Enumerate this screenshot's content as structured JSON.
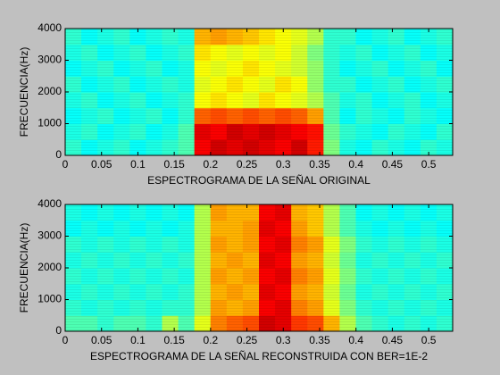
{
  "chart_data": [
    {
      "type": "heatmap",
      "xlabel": "ESPECTROGRAMA DE LA SEÑAL ORIGINAL",
      "ylabel": "FRECUENCIA(Hz)",
      "xlim": [
        0,
        0.533
      ],
      "ylim": [
        0,
        4000
      ],
      "xticks": [
        0,
        0.05,
        0.1,
        0.15,
        0.2,
        0.25,
        0.3,
        0.35,
        0.4,
        0.45,
        0.5
      ],
      "yticks": [
        0,
        1000,
        2000,
        3000,
        4000
      ],
      "colormap": "jet",
      "clim": [
        0,
        1
      ],
      "z": [
        [
          0.42,
          0.38,
          0.4,
          0.42,
          0.38,
          0.4,
          0.42,
          0.45,
          0.88,
          0.92,
          0.9,
          0.92,
          0.9,
          0.88,
          0.92,
          0.85,
          0.5,
          0.4,
          0.38,
          0.42,
          0.4,
          0.38,
          0.42,
          0.4
        ],
        [
          0.4,
          0.42,
          0.38,
          0.4,
          0.42,
          0.38,
          0.4,
          0.45,
          0.9,
          0.88,
          0.92,
          0.9,
          0.92,
          0.9,
          0.88,
          0.86,
          0.48,
          0.42,
          0.4,
          0.38,
          0.42,
          0.4,
          0.38,
          0.42
        ],
        [
          0.38,
          0.4,
          0.42,
          0.38,
          0.4,
          0.42,
          0.38,
          0.42,
          0.78,
          0.8,
          0.78,
          0.8,
          0.78,
          0.8,
          0.78,
          0.72,
          0.45,
          0.38,
          0.42,
          0.4,
          0.38,
          0.42,
          0.4,
          0.38
        ],
        [
          0.4,
          0.42,
          0.38,
          0.4,
          0.42,
          0.38,
          0.4,
          0.42,
          0.62,
          0.65,
          0.62,
          0.6,
          0.65,
          0.62,
          0.6,
          0.55,
          0.45,
          0.4,
          0.42,
          0.38,
          0.4,
          0.42,
          0.38,
          0.4
        ],
        [
          0.42,
          0.38,
          0.4,
          0.42,
          0.38,
          0.4,
          0.42,
          0.4,
          0.6,
          0.62,
          0.65,
          0.62,
          0.6,
          0.65,
          0.62,
          0.52,
          0.42,
          0.42,
          0.38,
          0.4,
          0.42,
          0.38,
          0.4,
          0.42
        ],
        [
          0.38,
          0.4,
          0.42,
          0.38,
          0.4,
          0.42,
          0.38,
          0.4,
          0.62,
          0.6,
          0.62,
          0.65,
          0.62,
          0.6,
          0.58,
          0.52,
          0.42,
          0.38,
          0.4,
          0.42,
          0.38,
          0.4,
          0.42,
          0.38
        ],
        [
          0.4,
          0.42,
          0.38,
          0.4,
          0.42,
          0.38,
          0.4,
          0.42,
          0.65,
          0.62,
          0.6,
          0.62,
          0.6,
          0.62,
          0.58,
          0.5,
          0.42,
          0.4,
          0.42,
          0.38,
          0.4,
          0.42,
          0.38,
          0.4
        ],
        [
          0.42,
          0.38,
          0.4,
          0.42,
          0.38,
          0.4,
          0.42,
          0.4,
          0.7,
          0.72,
          0.7,
          0.68,
          0.65,
          0.62,
          0.6,
          0.55,
          0.42,
          0.42,
          0.38,
          0.4,
          0.42,
          0.38,
          0.4,
          0.42
        ]
      ]
    },
    {
      "type": "heatmap",
      "xlabel": "ESPECTROGRAMA DE LA SEÑAL RECONSTRUIDA CON BER=1E-2",
      "ylabel": "FRECUENCIA(Hz)",
      "xlim": [
        0,
        0.533
      ],
      "ylim": [
        0,
        4000
      ],
      "xticks": [
        0,
        0.05,
        0.1,
        0.15,
        0.2,
        0.25,
        0.3,
        0.35,
        0.4,
        0.45,
        0.5
      ],
      "yticks": [
        0,
        1000,
        2000,
        3000,
        4000
      ],
      "colormap": "jet",
      "clim": [
        0,
        1
      ],
      "z": [
        [
          0.45,
          0.45,
          0.42,
          0.45,
          0.45,
          0.42,
          0.55,
          0.45,
          0.6,
          0.75,
          0.78,
          0.8,
          0.92,
          0.9,
          0.82,
          0.8,
          0.7,
          0.55,
          0.45,
          0.42,
          0.4,
          0.42,
          0.4,
          0.42
        ],
        [
          0.42,
          0.4,
          0.42,
          0.4,
          0.42,
          0.4,
          0.42,
          0.42,
          0.55,
          0.72,
          0.7,
          0.72,
          0.88,
          0.9,
          0.75,
          0.72,
          0.6,
          0.5,
          0.42,
          0.4,
          0.42,
          0.4,
          0.42,
          0.4
        ],
        [
          0.4,
          0.42,
          0.4,
          0.42,
          0.4,
          0.42,
          0.4,
          0.42,
          0.55,
          0.7,
          0.72,
          0.7,
          0.9,
          0.88,
          0.72,
          0.7,
          0.58,
          0.48,
          0.4,
          0.42,
          0.4,
          0.42,
          0.4,
          0.42
        ],
        [
          0.42,
          0.4,
          0.42,
          0.4,
          0.42,
          0.4,
          0.42,
          0.4,
          0.55,
          0.72,
          0.7,
          0.72,
          0.88,
          0.9,
          0.75,
          0.72,
          0.6,
          0.5,
          0.42,
          0.4,
          0.42,
          0.4,
          0.42,
          0.4
        ],
        [
          0.4,
          0.42,
          0.4,
          0.42,
          0.4,
          0.42,
          0.4,
          0.42,
          0.55,
          0.7,
          0.72,
          0.7,
          0.9,
          0.88,
          0.72,
          0.7,
          0.58,
          0.48,
          0.4,
          0.42,
          0.4,
          0.42,
          0.4,
          0.42
        ],
        [
          0.42,
          0.4,
          0.42,
          0.4,
          0.42,
          0.4,
          0.42,
          0.4,
          0.55,
          0.72,
          0.7,
          0.72,
          0.88,
          0.9,
          0.75,
          0.72,
          0.6,
          0.5,
          0.42,
          0.4,
          0.42,
          0.4,
          0.42,
          0.4
        ],
        [
          0.38,
          0.4,
          0.38,
          0.4,
          0.38,
          0.4,
          0.38,
          0.4,
          0.55,
          0.7,
          0.7,
          0.72,
          0.9,
          0.88,
          0.72,
          0.68,
          0.55,
          0.45,
          0.4,
          0.38,
          0.4,
          0.38,
          0.4,
          0.38
        ],
        [
          0.4,
          0.38,
          0.4,
          0.38,
          0.4,
          0.38,
          0.4,
          0.38,
          0.55,
          0.72,
          0.7,
          0.7,
          0.88,
          0.9,
          0.7,
          0.68,
          0.55,
          0.45,
          0.38,
          0.4,
          0.38,
          0.4,
          0.38,
          0.4
        ]
      ]
    }
  ]
}
